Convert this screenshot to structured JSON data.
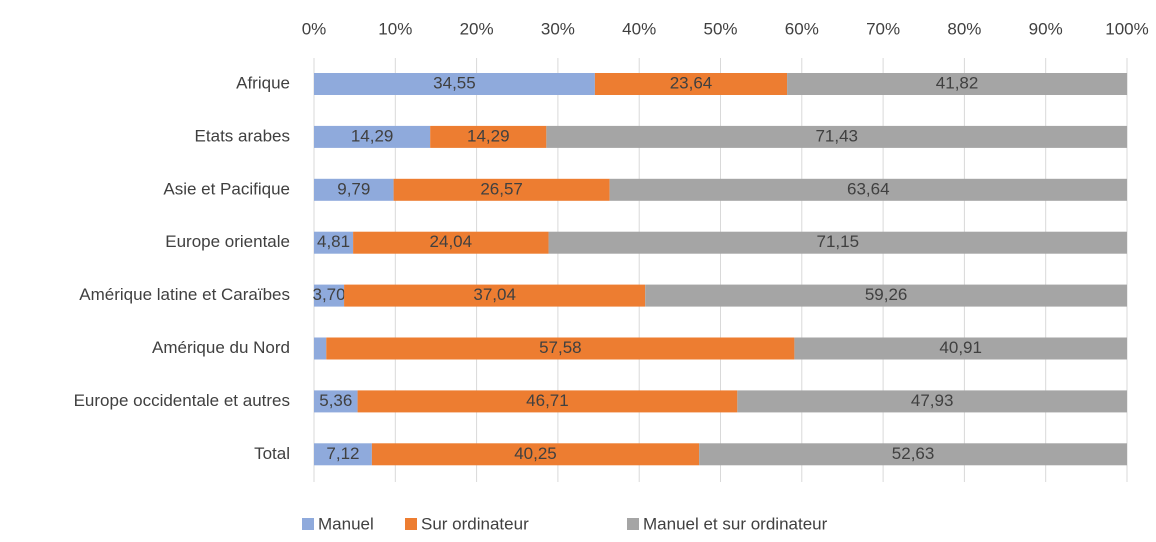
{
  "chart_data": {
    "type": "stacked_bar_horizontal",
    "categories": [
      "Afrique",
      "Etats arabes",
      "Asie et Pacifique",
      "Europe orientale",
      "Amérique latine et Caraïbes",
      "Amérique du Nord",
      "Europe occidentale et autres",
      "Total"
    ],
    "series": [
      {
        "name": "Manuel",
        "color": "#8faadc",
        "values": [
          34.55,
          14.29,
          9.79,
          4.81,
          3.7,
          1.51,
          5.36,
          7.12
        ],
        "value_labels": [
          "34,55",
          "14,29",
          "9,79",
          "4,81",
          "3,70",
          null,
          "5,36",
          "7,12"
        ]
      },
      {
        "name": "Sur ordinateur",
        "color": "#ed7d31",
        "values": [
          23.64,
          14.29,
          26.57,
          24.04,
          37.04,
          57.58,
          46.71,
          40.25
        ],
        "value_labels": [
          "23,64",
          "14,29",
          "26,57",
          "24,04",
          "37,04",
          "57,58",
          "46,71",
          "40,25"
        ]
      },
      {
        "name": "Manuel et sur ordinateur",
        "color": "#a5a5a5",
        "values": [
          41.82,
          71.43,
          63.64,
          71.15,
          59.26,
          40.91,
          47.93,
          52.63
        ],
        "value_labels": [
          "41,82",
          "71,43",
          "63,64",
          "71,15",
          "59,26",
          "40,91",
          "47,93",
          "52,63"
        ]
      }
    ],
    "xlim": [
      0,
      100
    ],
    "xticks": [
      {
        "value": 0,
        "label": "0%"
      },
      {
        "value": 10,
        "label": "10%"
      },
      {
        "value": 20,
        "label": "20%"
      },
      {
        "value": 30,
        "label": "30%"
      },
      {
        "value": 40,
        "label": "40%"
      },
      {
        "value": 50,
        "label": "50%"
      },
      {
        "value": 60,
        "label": "60%"
      },
      {
        "value": 70,
        "label": "70%"
      },
      {
        "value": 80,
        "label": "80%"
      },
      {
        "value": 90,
        "label": "90%"
      },
      {
        "value": 100,
        "label": "100%"
      }
    ],
    "grid": true,
    "legend": "bottom"
  }
}
